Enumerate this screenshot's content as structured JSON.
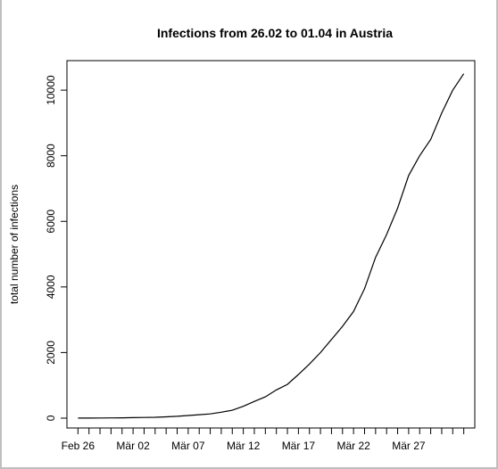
{
  "chart_data": {
    "type": "line",
    "title": "Infections from 26.02 to 01.04 in Austria",
    "xlabel": "",
    "ylabel": "total number of infections",
    "x_tick_labels": [
      "Feb 26",
      "Mär 02",
      "Mär 07",
      "Mär 12",
      "Mär 17",
      "Mär 22",
      "Mär 27"
    ],
    "y_ticks": [
      0,
      2000,
      4000,
      6000,
      8000,
      10000
    ],
    "ylim": [
      -300,
      10900
    ],
    "xlim": [
      "2020-02-25",
      "2020-04-02"
    ],
    "grid": false,
    "series": [
      {
        "name": "",
        "x": [
          "2020-02-26",
          "2020-02-27",
          "2020-02-28",
          "2020-02-29",
          "2020-03-01",
          "2020-03-02",
          "2020-03-03",
          "2020-03-04",
          "2020-03-05",
          "2020-03-06",
          "2020-03-07",
          "2020-03-08",
          "2020-03-09",
          "2020-03-10",
          "2020-03-11",
          "2020-03-12",
          "2020-03-13",
          "2020-03-14",
          "2020-03-15",
          "2020-03-16",
          "2020-03-17",
          "2020-03-18",
          "2020-03-19",
          "2020-03-20",
          "2020-03-21",
          "2020-03-22",
          "2020-03-23",
          "2020-03-24",
          "2020-03-25",
          "2020-03-26",
          "2020-03-27",
          "2020-03-28",
          "2020-03-29",
          "2020-03-30",
          "2020-03-31",
          "2020-04-01"
        ],
        "values": [
          2,
          3,
          5,
          7,
          10,
          14,
          20,
          25,
          40,
          55,
          80,
          105,
          130,
          180,
          240,
          360,
          510,
          650,
          860,
          1030,
          1330,
          1650,
          2000,
          2400,
          2800,
          3250,
          3950,
          4900,
          5600,
          6400,
          7400,
          8000,
          8500,
          9300,
          10000,
          10500
        ]
      }
    ]
  }
}
